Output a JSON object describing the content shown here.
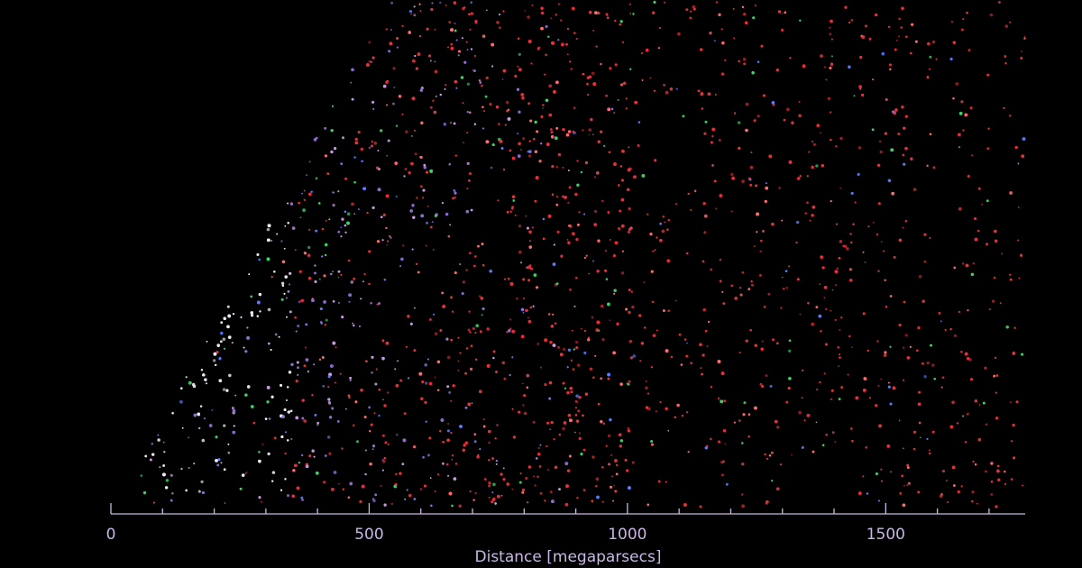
{
  "chart_data": {
    "type": "scatter",
    "xlabel": "Distance [megaparsecs]",
    "xlim": [
      0,
      1770
    ],
    "xticks": [
      0,
      500,
      1000,
      1500
    ],
    "xminorticks": [
      100,
      200,
      300,
      400,
      600,
      700,
      800,
      900,
      1100,
      1200,
      1300,
      1400,
      1600,
      1700
    ]
  }
}
